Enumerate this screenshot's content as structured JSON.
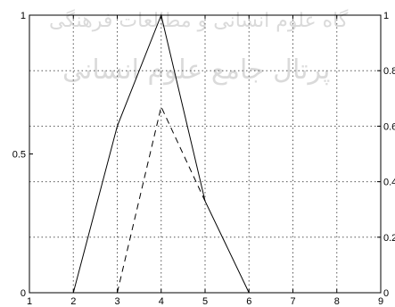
{
  "chart_data": {
    "type": "line",
    "title": "",
    "xlabel": "",
    "ylabel": "",
    "xlim": [
      1,
      9
    ],
    "ylim": [
      0,
      1
    ],
    "y2lim": [
      0,
      1
    ],
    "grid": true,
    "x_ticks": [
      1,
      2,
      3,
      4,
      5,
      6,
      7,
      8,
      9
    ],
    "x_tick_labels": [
      "1",
      "2",
      "3",
      "4",
      "5",
      "6",
      "7",
      "8",
      "9"
    ],
    "y_ticks": [
      0,
      0.5,
      1
    ],
    "y_tick_labels": [
      "0",
      "0.5",
      "1"
    ],
    "y2_ticks": [
      0,
      0.2,
      0.4,
      0.6,
      0.8,
      1
    ],
    "y2_tick_labels": [
      "0",
      "0.2",
      "0.4",
      "0.6",
      "0.8",
      "1"
    ],
    "series": [
      {
        "style": "solid",
        "x": [
          2,
          3,
          4,
          5,
          6
        ],
        "y": [
          0,
          0.6,
          1,
          0.33,
          0
        ]
      },
      {
        "style": "dashed",
        "x": [
          3,
          4,
          5
        ],
        "y": [
          0,
          0.67,
          0.33
        ]
      }
    ]
  }
}
